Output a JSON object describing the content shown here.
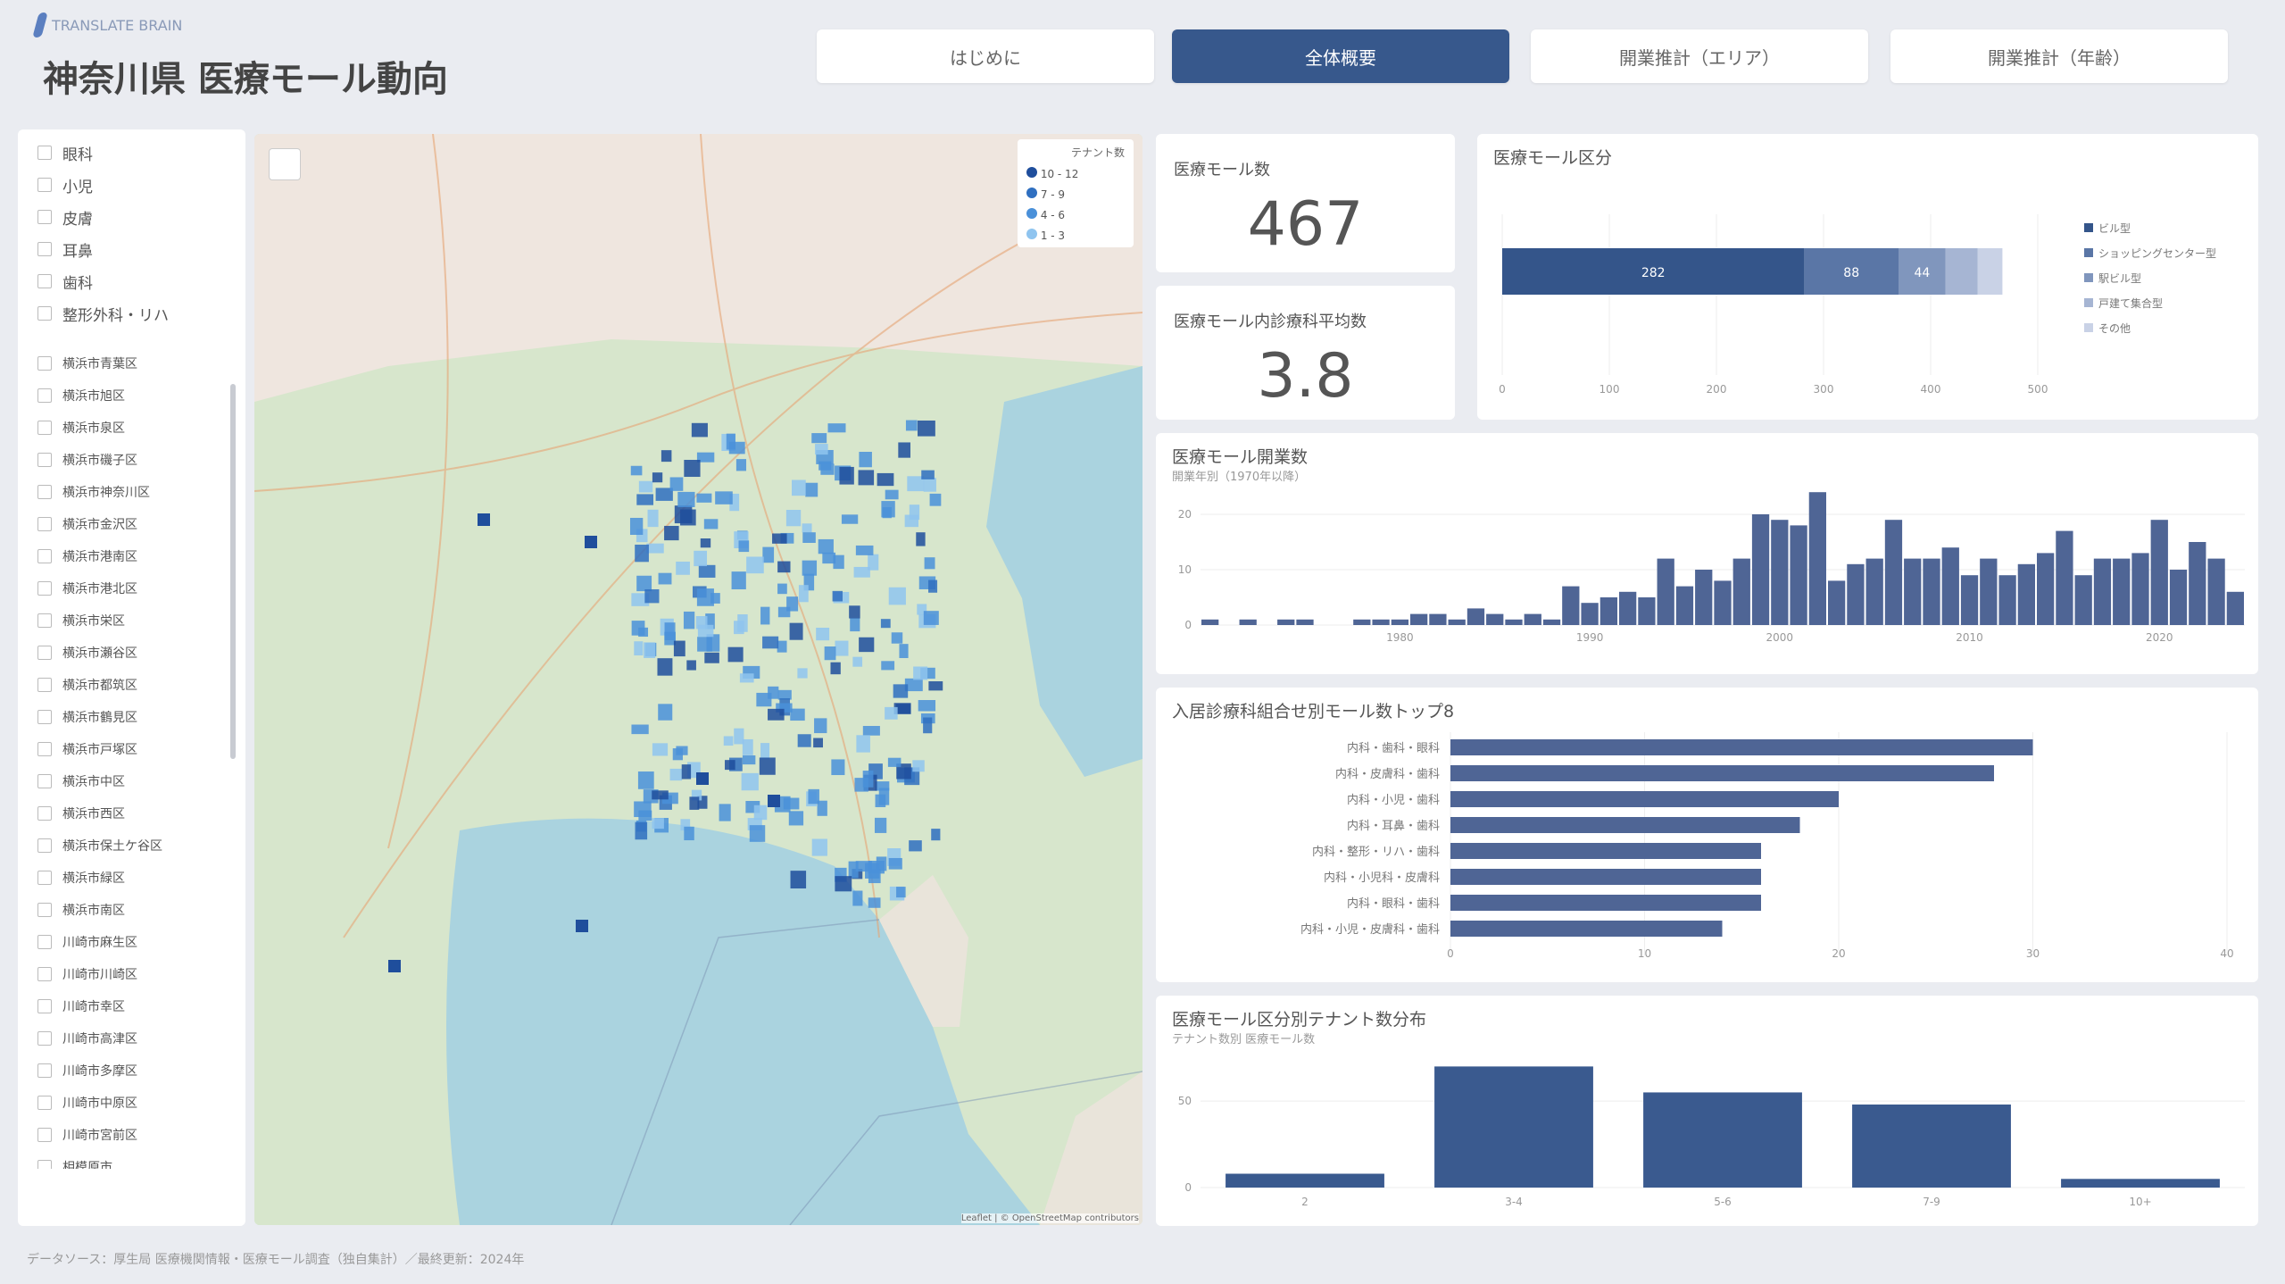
{
  "header": {
    "brand": "TRANSLATE BRAIN",
    "title": "神奈川県 医療モール動向"
  },
  "tabs": [
    {
      "label": "はじめに",
      "active": false
    },
    {
      "label": "全体概要",
      "active": true
    },
    {
      "label": "開業推計（エリア）",
      "active": false
    },
    {
      "label": "開業推計（年齢）",
      "active": false
    }
  ],
  "filters": {
    "types": [
      "眼科",
      "小児",
      "皮膚",
      "耳鼻",
      "歯科",
      "整形外科・リハ"
    ],
    "areas": [
      "横浜市青葉区",
      "横浜市旭区",
      "横浜市泉区",
      "横浜市磯子区",
      "横浜市神奈川区",
      "横浜市金沢区",
      "横浜市港南区",
      "横浜市港北区",
      "横浜市栄区",
      "横浜市瀬谷区",
      "横浜市都筑区",
      "横浜市鶴見区",
      "横浜市戸塚区",
      "横浜市中区",
      "横浜市西区",
      "横浜市保土ケ谷区",
      "横浜市緑区",
      "横浜市南区",
      "川崎市麻生区",
      "川崎市川崎区",
      "川崎市幸区",
      "川崎市高津区",
      "川崎市多摩区",
      "川崎市中原区",
      "川崎市宮前区",
      "相模原市"
    ]
  },
  "map": {
    "legend_title": "テナント数",
    "legend": [
      {
        "label": "10 - 12",
        "color": "#1f4e9c"
      },
      {
        "label": "7 - 9",
        "color": "#2f6fc0"
      },
      {
        "label": "4 - 6",
        "color": "#4a90d9"
      },
      {
        "label": "1 - 3",
        "color": "#8fc4ef"
      }
    ],
    "attribution": "Leaflet | © OpenStreetMap contributors"
  },
  "kpis": [
    {
      "label": "医療モール数",
      "value": "467"
    },
    {
      "label": "医療モール内診療科平均数",
      "value": "3.8"
    }
  ],
  "colors": {
    "primary": "#3a5a8f",
    "tab_active": "#37588c",
    "bg": "#eaecf1"
  },
  "chart_data": [
    {
      "type": "bar",
      "orientation": "horizontal-stacked",
      "title": "医療モール区分",
      "segments": [
        {
          "name": "ビル型",
          "value": 282,
          "label": "282"
        },
        {
          "name": "ショッピングセンター型",
          "value": 88,
          "label": "88"
        },
        {
          "name": "駅ビル型",
          "value": 44,
          "label": "44"
        },
        {
          "name": "戸建て集合型",
          "value": 30
        },
        {
          "name": "その他",
          "value": 23
        }
      ],
      "xticks": [
        "0",
        "100",
        "200",
        "300",
        "400",
        "500"
      ],
      "xlim": [
        0,
        500
      ],
      "legend": "right"
    },
    {
      "type": "bar",
      "title": "医療モール開業数",
      "subtitle": "開業年別（1970年以降）",
      "yticks": [
        "0",
        "10",
        "20"
      ],
      "ylim": [
        0,
        25
      ],
      "xticks": [
        "1980",
        "1990",
        "2000",
        "2010",
        "2020"
      ],
      "x": [
        1970,
        1971,
        1972,
        1973,
        1974,
        1975,
        1976,
        1977,
        1978,
        1979,
        1980,
        1981,
        1982,
        1983,
        1984,
        1985,
        1986,
        1987,
        1988,
        1989,
        1990,
        1991,
        1992,
        1993,
        1994,
        1995,
        1996,
        1997,
        1998,
        1999,
        2000,
        2001,
        2002,
        2003,
        2004,
        2005,
        2006,
        2007,
        2008,
        2009,
        2010,
        2011,
        2012,
        2013,
        2014,
        2015,
        2016,
        2017,
        2018,
        2019,
        2020,
        2021,
        2022,
        2023,
        2024
      ],
      "values": [
        1,
        0,
        1,
        0,
        1,
        1,
        0,
        0,
        1,
        1,
        1,
        2,
        2,
        1,
        3,
        2,
        1,
        2,
        1,
        7,
        4,
        5,
        6,
        5,
        12,
        7,
        10,
        8,
        12,
        20,
        19,
        18,
        24,
        8,
        11,
        12,
        19,
        12,
        12,
        14,
        9,
        12,
        9,
        11,
        13,
        17,
        9,
        12,
        12,
        13,
        19,
        10,
        15,
        12,
        6
      ]
    },
    {
      "type": "bar",
      "orientation": "horizontal",
      "title": "入居診療科組合せ別モール数トップ8",
      "categories": [
        "内科・歯科・眼科",
        "内科・皮膚科・歯科",
        "内科・小児・歯科",
        "内科・耳鼻・歯科",
        "内科・整形・リハ・歯科",
        "内科・小児科・皮膚科",
        "内科・眼科・歯科",
        "内科・小児・皮膚科・歯科"
      ],
      "values": [
        30,
        28,
        20,
        18,
        16,
        16,
        16,
        14
      ],
      "xticks": [
        "0",
        "10",
        "20",
        "30",
        "40"
      ],
      "xlim": [
        0,
        40
      ]
    },
    {
      "type": "bar",
      "title": "医療モール区分別テナント数分布",
      "subtitle": "テナント数別 医療モール数",
      "categories": [
        "2",
        "3-4",
        "5-6",
        "7-9",
        "10+"
      ],
      "values": [
        8,
        70,
        55,
        48,
        5
      ],
      "yticks": [
        "0",
        "50"
      ],
      "ylim": [
        0,
        80
      ]
    }
  ],
  "footer": "データソース：厚生局 医療機関情報・医療モール調査（独自集計）／最終更新：2024年"
}
